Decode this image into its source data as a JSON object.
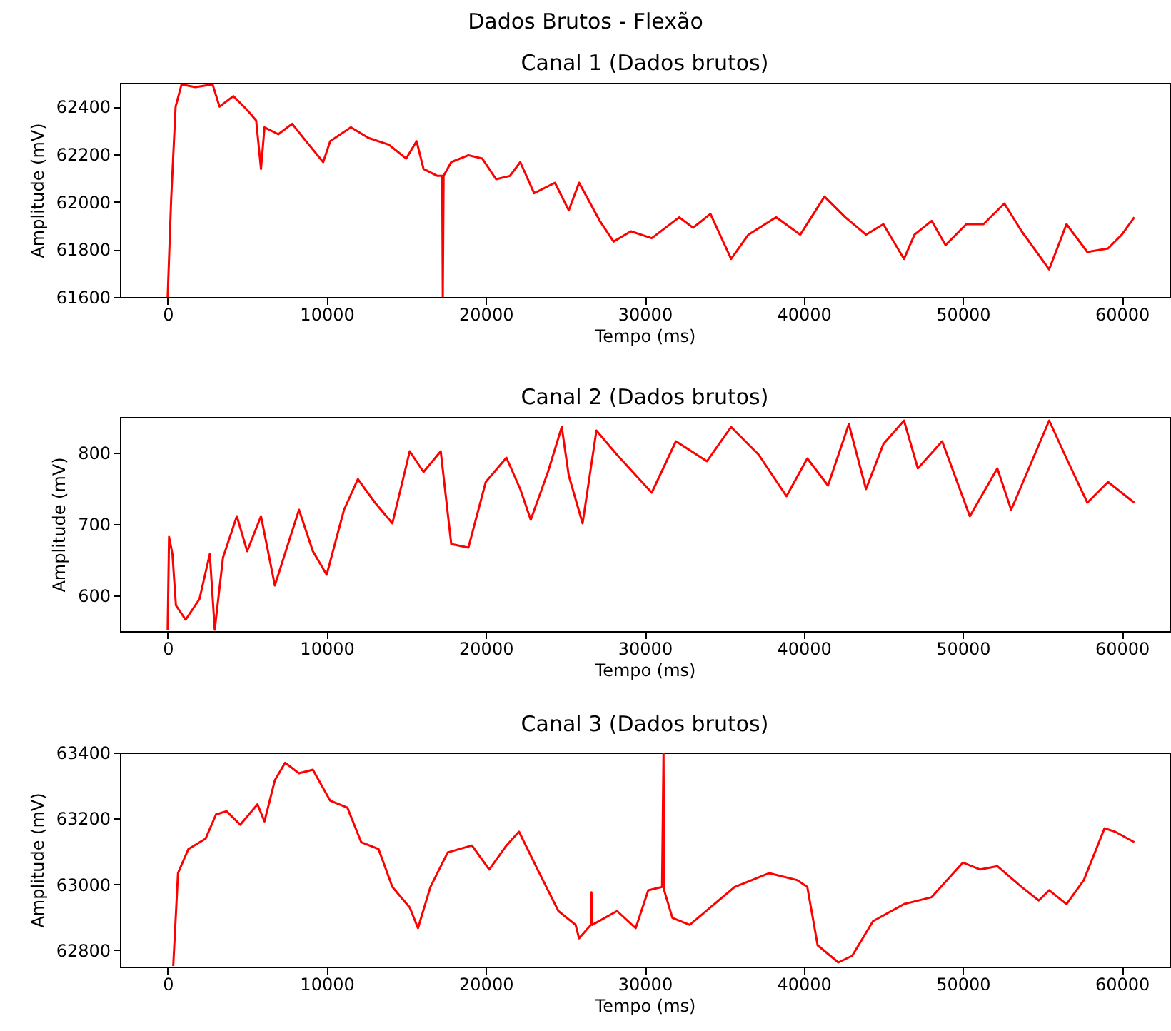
{
  "chart_data": [
    {
      "type": "line",
      "title": "Canal 1 (Dados brutos)",
      "xlabel": "Tempo (ms)",
      "ylabel": "Amplitude (mV)",
      "annotations": [
        "Dados Brutos - Flexão"
      ],
      "color": "#ff0000",
      "grid": false,
      "xlim": [
        -3000,
        63000
      ],
      "ylim": [
        61600,
        62500
      ],
      "xticks": [
        0,
        10000,
        20000,
        30000,
        40000,
        50000,
        60000
      ],
      "yticks": [
        61600,
        61800,
        62000,
        62200,
        62400
      ],
      "x": [
        0,
        217,
        500,
        870,
        1740,
        2830,
        3260,
        4130,
        5000,
        5565,
        5870,
        6090,
        6960,
        7830,
        8700,
        9780,
        10220,
        11520,
        12610,
        13910,
        15000,
        15650,
        16090,
        16960,
        17260,
        17300,
        17350,
        17830,
        18910,
        19780,
        20650,
        21520,
        22170,
        23040,
        24350,
        25220,
        25870,
        27170,
        28040,
        29130,
        30440,
        32170,
        33040,
        34130,
        35430,
        36520,
        38260,
        39780,
        41300,
        42610,
        43910,
        45000,
        46300,
        46960,
        48040,
        48910,
        50220,
        51300,
        52610,
        53700,
        55430,
        56520,
        57830,
        59130,
        60000,
        60780
      ],
      "values": [
        61600,
        62007,
        62400,
        62493,
        62482,
        62493,
        62400,
        62444,
        62386,
        62342,
        62138,
        62313,
        62284,
        62328,
        62255,
        62167,
        62255,
        62313,
        62269,
        62240,
        62182,
        62255,
        62138,
        62109,
        62109,
        61600,
        62109,
        62167,
        62196,
        62182,
        62095,
        62109,
        62167,
        62036,
        62080,
        61964,
        62080,
        61920,
        61833,
        61876,
        61847,
        61935,
        61891,
        61949,
        61760,
        61862,
        61935,
        61862,
        62022,
        61935,
        61862,
        61906,
        61760,
        61862,
        61920,
        61818,
        61906,
        61906,
        61993,
        61876,
        61716,
        61906,
        61789,
        61804,
        61862,
        61935
      ]
    },
    {
      "type": "line",
      "title": "Canal 2 (Dados brutos)",
      "xlabel": "Tempo (ms)",
      "ylabel": "Amplitude (mV)",
      "color": "#ff0000",
      "grid": false,
      "xlim": [
        -3000,
        63000
      ],
      "ylim": [
        550,
        850
      ],
      "xticks": [
        0,
        10000,
        20000,
        30000,
        40000,
        50000,
        60000
      ],
      "yticks": [
        600,
        700,
        800
      ],
      "x": [
        0,
        87,
        300,
        520,
        1130,
        2000,
        2650,
        2960,
        3480,
        4350,
        5000,
        5870,
        6740,
        8260,
        9130,
        10000,
        11090,
        11960,
        13040,
        14130,
        15220,
        16090,
        17170,
        17830,
        18910,
        20000,
        21300,
        22170,
        22830,
        23910,
        24780,
        25220,
        26090,
        26960,
        28260,
        30440,
        31960,
        33910,
        35430,
        37170,
        38910,
        40220,
        41520,
        42830,
        43910,
        45000,
        46300,
        47170,
        48700,
        50440,
        52170,
        53040,
        55430,
        56520,
        57830,
        59130,
        60780
      ],
      "values": [
        552,
        682,
        658,
        586,
        566,
        595,
        658,
        552,
        653,
        711,
        662,
        711,
        614,
        720,
        662,
        629,
        720,
        763,
        730,
        701,
        802,
        773,
        802,
        672,
        667,
        759,
        793,
        749,
        706,
        773,
        836,
        768,
        701,
        831,
        797,
        744,
        816,
        788,
        836,
        797,
        739,
        792,
        754,
        840,
        749,
        812,
        845,
        778,
        816,
        711,
        778,
        720,
        845,
        792,
        730,
        759,
        730
      ]
    },
    {
      "type": "line",
      "title": "Canal 3 (Dados brutos)",
      "xlabel": "Tempo (ms)",
      "ylabel": "Amplitude (mV)",
      "color": "#ff0000",
      "grid": false,
      "xlim": [
        -3000,
        63000
      ],
      "ylim": [
        62750,
        63400
      ],
      "xticks": [
        0,
        10000,
        20000,
        30000,
        40000,
        50000,
        60000
      ],
      "yticks": [
        62800,
        63000,
        63200,
        63400
      ],
      "x": [
        350,
        650,
        1300,
        2390,
        3040,
        3700,
        4570,
        5650,
        6090,
        6740,
        7390,
        8260,
        9130,
        10220,
        11300,
        12170,
        13260,
        14130,
        15220,
        15740,
        16520,
        17610,
        19130,
        20220,
        21300,
        22090,
        23260,
        24570,
        25650,
        25870,
        26610,
        26650,
        26700,
        28260,
        29430,
        30220,
        31090,
        31180,
        31220,
        31740,
        32830,
        34130,
        35650,
        37830,
        39570,
        40220,
        40870,
        42170,
        43040,
        44350,
        46300,
        48040,
        50000,
        51090,
        52170,
        53700,
        54780,
        55430,
        56520,
        57610,
        58910,
        59570,
        60780
      ],
      "values": [
        62752,
        63034,
        63107,
        63139,
        63212,
        63222,
        63181,
        63243,
        63191,
        63316,
        63369,
        63337,
        63348,
        63254,
        63233,
        63128,
        63107,
        62992,
        62930,
        62867,
        62992,
        63097,
        63118,
        63045,
        63118,
        63160,
        63045,
        62919,
        62877,
        62836,
        62877,
        62976,
        62877,
        62919,
        62867,
        62982,
        62992,
        63400,
        62982,
        62898,
        62877,
        62930,
        62992,
        63034,
        63013,
        62992,
        62815,
        62763,
        62783,
        62888,
        62940,
        62961,
        63066,
        63045,
        63055,
        62992,
        62951,
        62982,
        62940,
        63013,
        63170,
        63160,
        63128
      ]
    }
  ]
}
